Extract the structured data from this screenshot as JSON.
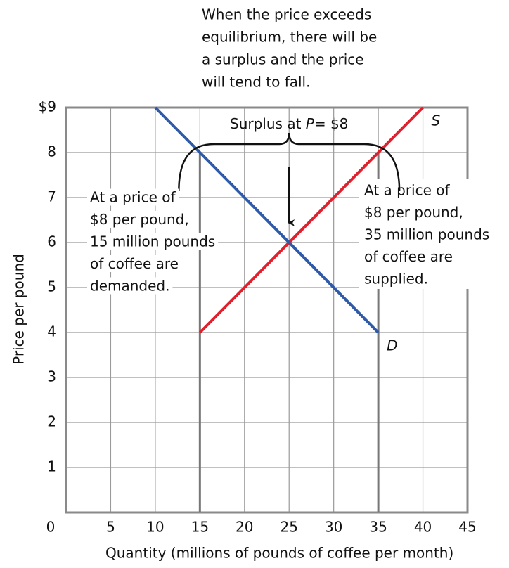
{
  "chart_data": {
    "type": "line",
    "note_top": [
      "When the price exceeds",
      "equilibrium, there will be",
      "a surplus and the price",
      "will tend to fall."
    ],
    "xlabel": "Quantity (millions of pounds of coffee per month)",
    "ylabel": "Price per pound",
    "xlim": [
      0,
      45
    ],
    "xticks": [
      0,
      5,
      10,
      15,
      20,
      25,
      30,
      35,
      40,
      45
    ],
    "ylim": [
      0,
      9
    ],
    "yticks": [
      {
        "value": 9,
        "label": "$9"
      },
      8,
      7,
      6,
      5,
      4,
      3,
      2,
      1
    ],
    "grid": true,
    "series": [
      {
        "name": "S",
        "color": "#e0202c",
        "x": [
          15,
          40
        ],
        "values": [
          4,
          9
        ]
      },
      {
        "name": "D",
        "color": "#2f5aa8",
        "x": [
          10,
          35
        ],
        "values": [
          9,
          4
        ]
      }
    ],
    "surplus": {
      "label": [
        "Surplus at ",
        "P",
        "= $8"
      ],
      "price": 8,
      "q_demanded": 15,
      "q_supplied": 35
    },
    "note_left": [
      "At a price of",
      "$8 per pound,",
      "15 million pounds",
      "of coffee are",
      "demanded."
    ],
    "note_right": [
      "At a price of",
      "$8 per pound,",
      "35 million pounds",
      "of coffee are",
      "supplied."
    ]
  }
}
